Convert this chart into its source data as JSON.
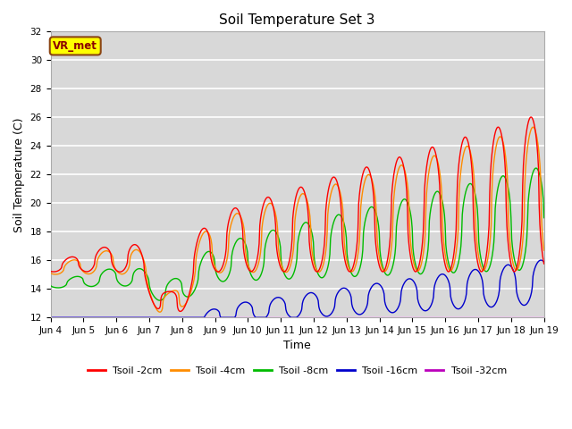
{
  "title": "Soil Temperature Set 3",
  "xlabel": "Time",
  "ylabel": "Soil Temperature (C)",
  "ylim": [
    12,
    32
  ],
  "yticks": [
    12,
    14,
    16,
    18,
    20,
    22,
    24,
    26,
    28,
    30,
    32
  ],
  "xtick_labels": [
    "Jun 4",
    "Jun 5",
    "Jun 6",
    "Jun 7",
    "Jun 8",
    "Jun 9",
    "Jun 10",
    "Jun 11",
    "Jun 12",
    "Jun 13",
    "Jun 14",
    "Jun 15",
    "Jun 16",
    "Jun 17",
    "Jun 18",
    "Jun 19"
  ],
  "series_colors": [
    "#ff0000",
    "#ff8c00",
    "#00bb00",
    "#0000cc",
    "#bb00bb"
  ],
  "series_labels": [
    "Tsoil -2cm",
    "Tsoil -4cm",
    "Tsoil -8cm",
    "Tsoil -16cm",
    "Tsoil -32cm"
  ],
  "bg_color": "#d8d8d8",
  "annotation_text": "VR_met",
  "annotation_bg": "#ffff00",
  "annotation_border": "#8b4513",
  "n_days": 15,
  "start_day_label": "Jun 4"
}
